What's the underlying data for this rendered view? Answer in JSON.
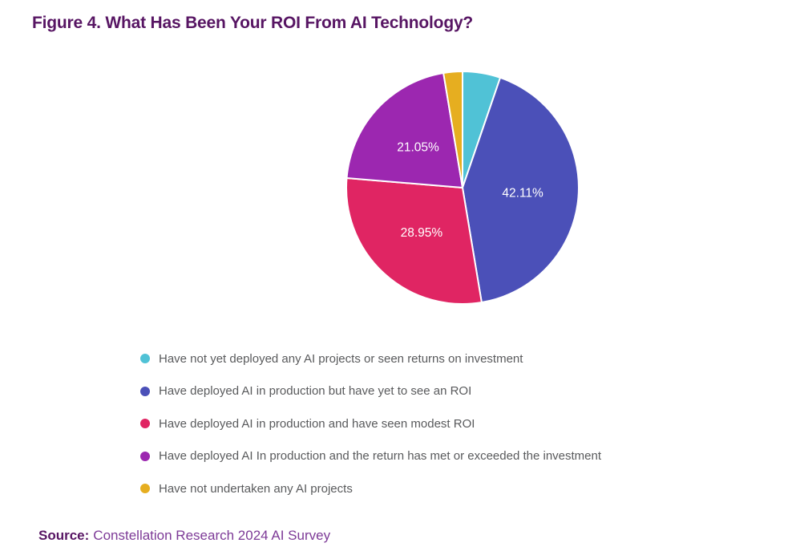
{
  "page": {
    "title": "Figure 4. What Has Been Your ROI From AI Technology?",
    "source_label": "Source:",
    "source_text": "Constellation Research 2024 AI Survey"
  },
  "colors": {
    "background": "#ffffff",
    "title": "#571563",
    "source_label": "#571563",
    "source_text": "#7d3a97",
    "legend_text": "#595a5c",
    "slice_label": "#ffffff",
    "slice_separator": "#ffffff"
  },
  "chart_data": {
    "type": "pie",
    "title": "Figure 4. What Has Been Your ROI From AI Technology?",
    "start_angle_deg": 0,
    "direction": "clockwise",
    "legend_position": "bottom-left",
    "slices": [
      {
        "name": "Have not yet deployed any AI projects or seen returns on investment",
        "value": 5.26,
        "color": "#50c2d6",
        "label": null
      },
      {
        "name": "Have deployed AI in production but have yet to see an ROI",
        "value": 42.11,
        "color": "#4b50b8",
        "label": "42.11%"
      },
      {
        "name": "Have deployed AI in production and have seen modest ROI",
        "value": 28.95,
        "color": "#e02563",
        "label": "28.95%"
      },
      {
        "name": "Have deployed AI In production and the return has met or exceeded the investment",
        "value": 21.05,
        "color": "#9c27b0",
        "label": "21.05%"
      },
      {
        "name": "Have not undertaken any AI projects",
        "value": 2.63,
        "color": "#e6ae20",
        "label": null
      }
    ]
  }
}
